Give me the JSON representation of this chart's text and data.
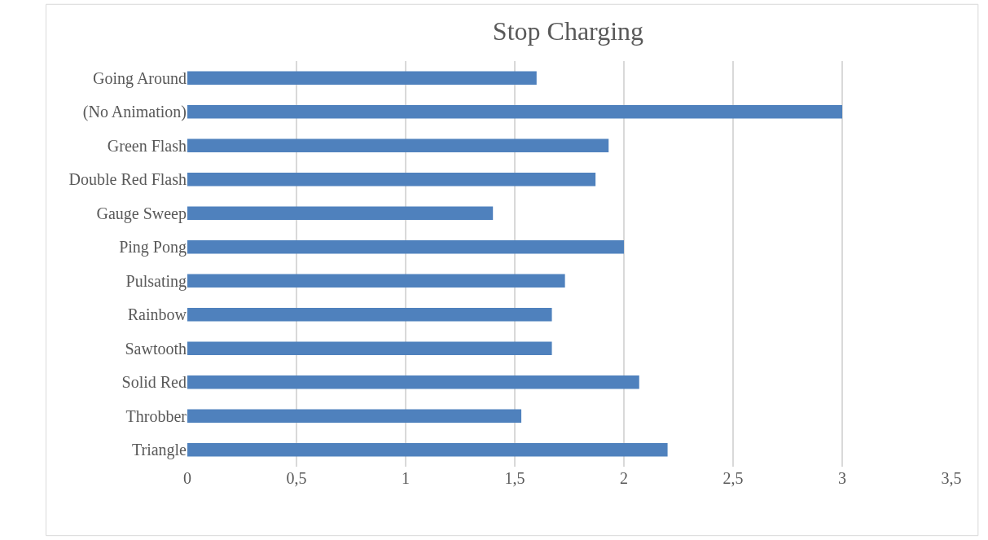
{
  "chart_data": {
    "type": "bar",
    "orientation": "horizontal",
    "title": "Stop Charging",
    "categories": [
      "Going Around",
      "(No Animation)",
      "Green Flash",
      "Double Red Flash",
      "Gauge Sweep",
      "Ping Pong",
      "Pulsating",
      "Rainbow",
      "Sawtooth",
      "Solid Red",
      "Throbber",
      "Triangle"
    ],
    "values": [
      1.6,
      3,
      1.93,
      1.87,
      1.4,
      2,
      1.73,
      1.67,
      1.67,
      2.07,
      1.53,
      2.2
    ],
    "color": "#4f81bd",
    "xlim": [
      0,
      3.5
    ],
    "xticks": [
      0,
      {
        "value": 0.5,
        "label": "0,5"
      },
      1,
      {
        "value": 1.5,
        "label": "1,5"
      },
      2,
      {
        "value": 2.5,
        "label": "2,5"
      },
      3,
      {
        "value": 3.5,
        "label": "3,5"
      }
    ],
    "grid": "x",
    "legend": false
  }
}
